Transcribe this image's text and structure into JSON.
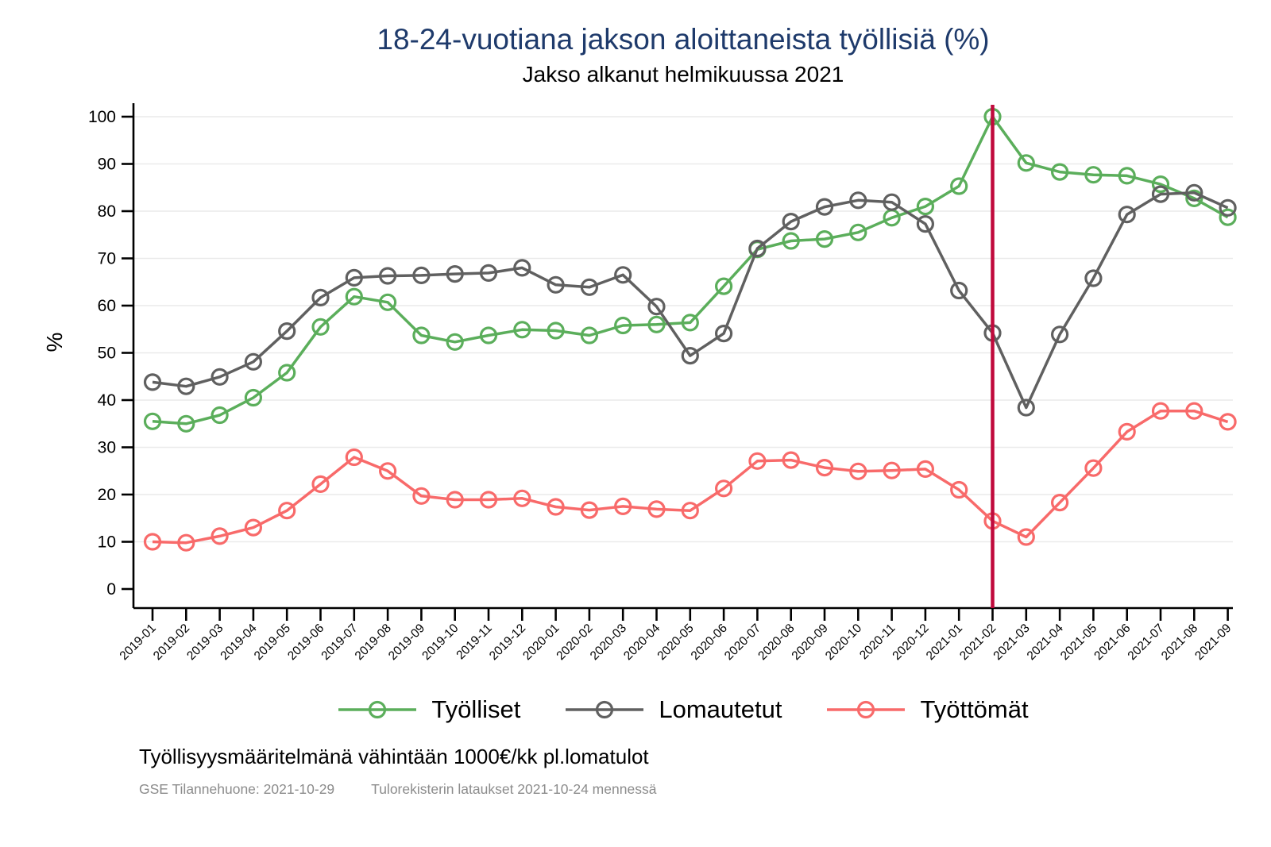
{
  "chart_data": {
    "type": "line",
    "title": "18-24-vuotiana jakson aloittaneista työllisiä (%)",
    "subtitle": "Jakso alkanut helmikuussa 2021",
    "ylabel": "%",
    "ylim": [
      0,
      100
    ],
    "ytick_step": 10,
    "grid": true,
    "legend_position": "bottom",
    "x": [
      "2019-01",
      "2019-02",
      "2019-03",
      "2019-04",
      "2019-05",
      "2019-06",
      "2019-07",
      "2019-08",
      "2019-09",
      "2019-10",
      "2019-11",
      "2019-12",
      "2020-01",
      "2020-02",
      "2020-03",
      "2020-04",
      "2020-05",
      "2020-06",
      "2020-07",
      "2020-08",
      "2020-09",
      "2020-10",
      "2020-11",
      "2020-12",
      "2021-01",
      "2021-02",
      "2021-03",
      "2021-04",
      "2021-05",
      "2021-06",
      "2021-07",
      "2021-08",
      "2021-09"
    ],
    "series": [
      {
        "key": "tyolliset",
        "name": "Työlliset",
        "color": "#5BAE5B",
        "values": [
          35.5,
          35.0,
          36.8,
          40.5,
          45.8,
          55.5,
          61.9,
          60.7,
          53.7,
          52.3,
          53.7,
          54.9,
          54.7,
          53.7,
          55.8,
          56.0,
          56.4,
          64.1,
          71.9,
          73.7,
          74.1,
          75.5,
          78.6,
          81.0,
          85.3,
          100.0,
          90.2,
          88.3,
          87.7,
          87.5,
          85.7,
          82.7,
          78.7
        ]
      },
      {
        "key": "lomautetut",
        "name": "Lomautetut",
        "color": "#606060",
        "values": [
          43.8,
          42.9,
          44.9,
          48.1,
          54.6,
          61.7,
          65.9,
          66.3,
          66.4,
          66.7,
          66.9,
          68.0,
          64.4,
          63.9,
          66.5,
          59.8,
          49.4,
          54.1,
          72.1,
          77.8,
          80.9,
          82.3,
          81.9,
          77.3,
          63.2,
          54.2,
          38.4,
          53.9,
          65.8,
          79.3,
          83.6,
          83.9,
          80.7
        ]
      },
      {
        "key": "tyottomat",
        "name": "Työttömät",
        "color": "#F86A6A",
        "values": [
          10.0,
          9.8,
          11.2,
          13.0,
          16.6,
          22.2,
          27.9,
          25.0,
          19.7,
          18.9,
          18.9,
          19.2,
          17.4,
          16.7,
          17.5,
          16.9,
          16.6,
          21.3,
          27.1,
          27.3,
          25.7,
          24.9,
          25.1,
          25.4,
          21.0,
          14.4,
          11.0,
          18.3,
          25.6,
          33.3,
          37.7,
          37.7,
          35.4
        ]
      }
    ],
    "vline": {
      "x": "2021-02",
      "color": "#C00A3C"
    },
    "colors": {
      "title": "#1E3A6B",
      "grid": "#EAEAEA",
      "axis": "#000000",
      "note_gray": "#8C8C8C"
    }
  },
  "footer": {
    "note": "Työllisyysmääritelmänä vähintään 1000€/kk pl.lomatulot",
    "source_left": "GSE Tilannehuone: 2021-10-29",
    "source_right": "Tulorekisterin lataukset 2021-10-24 mennessä"
  }
}
